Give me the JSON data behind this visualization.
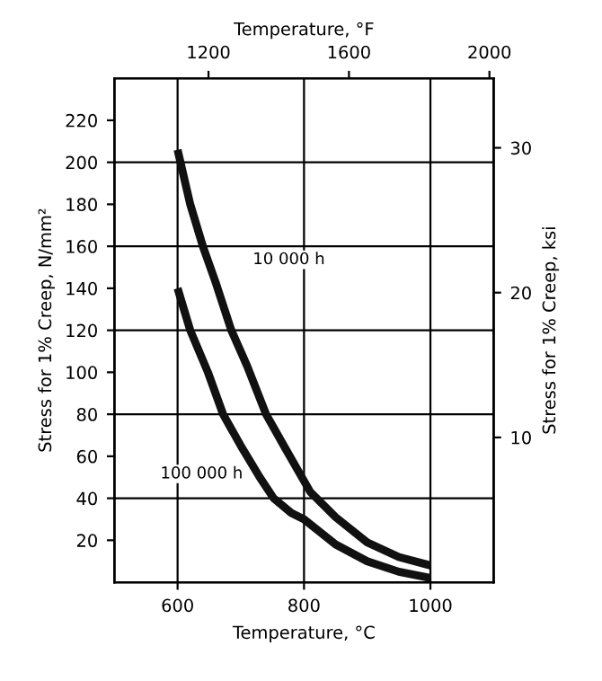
{
  "chart_data": {
    "type": "line",
    "xlabel": "Temperature, °C",
    "ylabel": "Stress for 1% Creep, N/mm²",
    "x2label": "Temperature, °F",
    "y2label": "Stress for 1% Creep, ksi",
    "series": [
      {
        "color": "#111111",
        "x": [
          600,
          620,
          640,
          660,
          685,
          710,
          740,
          770,
          810,
          850,
          900,
          950,
          1000
        ],
        "values": [
          206,
          180,
          160,
          143,
          120,
          103,
          80,
          64,
          43,
          31,
          19,
          12,
          8
        ]
      },
      {
        "color": "#111111",
        "x": [
          600,
          620,
          648,
          672,
          700,
          730,
          752,
          780,
          800,
          850,
          900,
          950,
          1000
        ],
        "values": [
          140,
          120,
          100,
          80,
          65,
          50,
          40,
          33,
          30,
          18,
          10,
          5,
          2
        ]
      }
    ],
    "annotations": [
      "10 000 h",
      "100 000 h"
    ],
    "xlim": [
      500,
      1100
    ],
    "xticks": [
      600,
      800,
      1000
    ],
    "ylim": [
      0,
      240
    ],
    "yticks": [
      20,
      40,
      60,
      80,
      100,
      120,
      140,
      160,
      180,
      200,
      220
    ],
    "x2lim": [
      932,
      2012
    ],
    "x2ticks": [
      1200,
      1600,
      2000
    ],
    "y2lim": [
      0,
      34.8
    ],
    "y2ticks": [
      10,
      20,
      30
    ],
    "grid": "x",
    "ref_lines": [
      {
        "axis": "y",
        "value": 40
      },
      {
        "axis": "y",
        "value": 80
      },
      {
        "axis": "y",
        "value": 120
      },
      {
        "axis": "y",
        "value": 160
      },
      {
        "axis": "y",
        "value": 200
      }
    ],
    "marker": "none",
    "line_style": "solid",
    "legend": false
  }
}
